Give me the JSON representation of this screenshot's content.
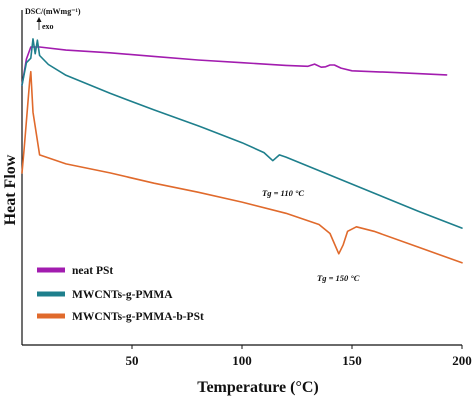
{
  "chart_data": {
    "type": "line",
    "xlabel": "Temperature (°C)",
    "ylabel": "Heat Flow",
    "unit_label": "DSC/(mWmg⁻¹)",
    "exo_label": "exo",
    "xlim": [
      0,
      200
    ],
    "xticks": [
      50,
      100,
      150,
      200
    ],
    "grid": false,
    "legend_position": "bottom-left",
    "series": [
      {
        "name": "neat PSt",
        "color": "#a21caf",
        "x": [
          0,
          2,
          4,
          8,
          20,
          40,
          60,
          80,
          100,
          120,
          130,
          133,
          136,
          138,
          140,
          142,
          145,
          150,
          170,
          193
        ],
        "y": [
          0.0,
          0.58,
          0.85,
          0.85,
          0.78,
          0.72,
          0.64,
          0.56,
          0.5,
          0.44,
          0.42,
          0.47,
          0.4,
          0.41,
          0.45,
          0.45,
          0.38,
          0.32,
          0.28,
          0.23
        ]
      },
      {
        "name": "MWCNTs-g-PMMA",
        "color": "#1e7f8c",
        "x": [
          0,
          2,
          4,
          5,
          6,
          7,
          8,
          12,
          20,
          40,
          60,
          80,
          100,
          110,
          114,
          117,
          120,
          125,
          140,
          160,
          180,
          200
        ],
        "y": [
          0.0,
          0.5,
          0.6,
          1.03,
          0.7,
          1.0,
          0.66,
          0.46,
          0.22,
          -0.18,
          -0.55,
          -0.9,
          -1.28,
          -1.5,
          -1.68,
          -1.55,
          -1.6,
          -1.7,
          -2.0,
          -2.4,
          -2.8,
          -3.18
        ]
      },
      {
        "name": "MWCNTs-g-PMMA-b-PSt",
        "color": "#e06a2c",
        "x": [
          0,
          1,
          2,
          3,
          3.5,
          4,
          5,
          8,
          20,
          40,
          60,
          80,
          100,
          120,
          135,
          140,
          144,
          146,
          148,
          152,
          160,
          180,
          200
        ],
        "y": [
          -1.95,
          -1.4,
          -0.8,
          -0.2,
          0.1,
          0.3,
          -0.6,
          -1.55,
          -1.75,
          -1.95,
          -2.18,
          -2.38,
          -2.6,
          -2.85,
          -3.1,
          -3.3,
          -3.75,
          -3.55,
          -3.25,
          -3.15,
          -3.25,
          -3.6,
          -3.95
        ]
      }
    ],
    "annotations": [
      {
        "text": "Tg = 110 °C",
        "x": 110
      },
      {
        "text": "Tg = 150 °C",
        "x": 150
      }
    ]
  }
}
